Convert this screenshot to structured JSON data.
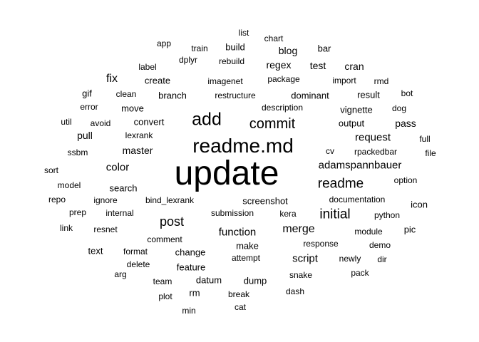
{
  "cloud": {
    "text_color": "#000000",
    "background": "#ffffff",
    "words": [
      {
        "text": "update",
        "freq": 100
      },
      {
        "text": "readme.md",
        "freq": 62
      },
      {
        "text": "add",
        "freq": 55
      },
      {
        "text": "commit",
        "freq": 40
      },
      {
        "text": "readme",
        "freq": 37
      },
      {
        "text": "initial",
        "freq": 37
      },
      {
        "text": "post",
        "freq": 34
      },
      {
        "text": "merge",
        "freq": 29
      },
      {
        "text": "fix",
        "freq": 28
      },
      {
        "text": "color",
        "freq": 27
      },
      {
        "text": "request",
        "freq": 26
      },
      {
        "text": "script",
        "freq": 26
      },
      {
        "text": "function",
        "freq": 25
      },
      {
        "text": "adamspannbauer",
        "freq": 25
      },
      {
        "text": "test",
        "freq": 24
      },
      {
        "text": "regex",
        "freq": 23
      },
      {
        "text": "blog",
        "freq": 22
      },
      {
        "text": "cran",
        "freq": 22
      },
      {
        "text": "pull",
        "freq": 22
      },
      {
        "text": "master",
        "freq": 22
      },
      {
        "text": "pass",
        "freq": 22
      },
      {
        "text": "convert",
        "freq": 21
      },
      {
        "text": "output",
        "freq": 21
      },
      {
        "text": "vignette",
        "freq": 21
      },
      {
        "text": "bar",
        "freq": 21
      },
      {
        "text": "screenshot",
        "freq": 21
      },
      {
        "text": "change",
        "freq": 21
      },
      {
        "text": "icon",
        "freq": 21
      },
      {
        "text": "pic",
        "freq": 21
      },
      {
        "text": "gif",
        "freq": 21
      },
      {
        "text": "build",
        "freq": 19
      },
      {
        "text": "create",
        "freq": 19
      },
      {
        "text": "branch",
        "freq": 19
      },
      {
        "text": "dominant",
        "freq": 19
      },
      {
        "text": "result",
        "freq": 19
      },
      {
        "text": "move",
        "freq": 19
      },
      {
        "text": "search",
        "freq": 19
      },
      {
        "text": "datum",
        "freq": 19
      },
      {
        "text": "dump",
        "freq": 19
      },
      {
        "text": "rm",
        "freq": 21
      },
      {
        "text": "make",
        "freq": 19
      },
      {
        "text": "feature",
        "freq": 19
      },
      {
        "text": "text",
        "freq": 19
      },
      {
        "text": "app",
        "freq": 18
      },
      {
        "text": "train",
        "freq": 18
      },
      {
        "text": "chart",
        "freq": 17
      },
      {
        "text": "list",
        "freq": 17
      },
      {
        "text": "dplyr",
        "freq": 17
      },
      {
        "text": "rebuild",
        "freq": 17
      },
      {
        "text": "label",
        "freq": 17
      },
      {
        "text": "package",
        "freq": 17
      },
      {
        "text": "imagenet",
        "freq": 17
      },
      {
        "text": "import",
        "freq": 17
      },
      {
        "text": "rmd",
        "freq": 17
      },
      {
        "text": "restructure",
        "freq": 17
      },
      {
        "text": "bot",
        "freq": 17
      },
      {
        "text": "clean",
        "freq": 17
      },
      {
        "text": "error",
        "freq": 17
      },
      {
        "text": "description",
        "freq": 17
      },
      {
        "text": "dog",
        "freq": 17
      },
      {
        "text": "util",
        "freq": 17
      },
      {
        "text": "avoid",
        "freq": 17
      },
      {
        "text": "lexrank",
        "freq": 17
      },
      {
        "text": "full",
        "freq": 17
      },
      {
        "text": "ssbm",
        "freq": 17
      },
      {
        "text": "cv",
        "freq": 17
      },
      {
        "text": "rpackedbar",
        "freq": 17
      },
      {
        "text": "file",
        "freq": 17
      },
      {
        "text": "sort",
        "freq": 17
      },
      {
        "text": "option",
        "freq": 17
      },
      {
        "text": "model",
        "freq": 17
      },
      {
        "text": "repo",
        "freq": 17
      },
      {
        "text": "ignore",
        "freq": 17
      },
      {
        "text": "bind_lexrank",
        "freq": 17
      },
      {
        "text": "documentation",
        "freq": 17
      },
      {
        "text": "prep",
        "freq": 17
      },
      {
        "text": "internal",
        "freq": 17
      },
      {
        "text": "submission",
        "freq": 17
      },
      {
        "text": "kera",
        "freq": 17
      },
      {
        "text": "python",
        "freq": 17
      },
      {
        "text": "link",
        "freq": 17
      },
      {
        "text": "resnet",
        "freq": 17
      },
      {
        "text": "module",
        "freq": 17
      },
      {
        "text": "comment",
        "freq": 17
      },
      {
        "text": "response",
        "freq": 17
      },
      {
        "text": "demo",
        "freq": 17
      },
      {
        "text": "format",
        "freq": 17
      },
      {
        "text": "attempt",
        "freq": 17
      },
      {
        "text": "newly",
        "freq": 17
      },
      {
        "text": "dir",
        "freq": 17
      },
      {
        "text": "delete",
        "freq": 17
      },
      {
        "text": "arg",
        "freq": 17
      },
      {
        "text": "snake",
        "freq": 17
      },
      {
        "text": "pack",
        "freq": 17
      },
      {
        "text": "team",
        "freq": 17
      },
      {
        "text": "plot",
        "freq": 17
      },
      {
        "text": "break",
        "freq": 17
      },
      {
        "text": "dash",
        "freq": 17
      },
      {
        "text": "cat",
        "freq": 17
      },
      {
        "text": "min",
        "freq": 17
      }
    ]
  }
}
